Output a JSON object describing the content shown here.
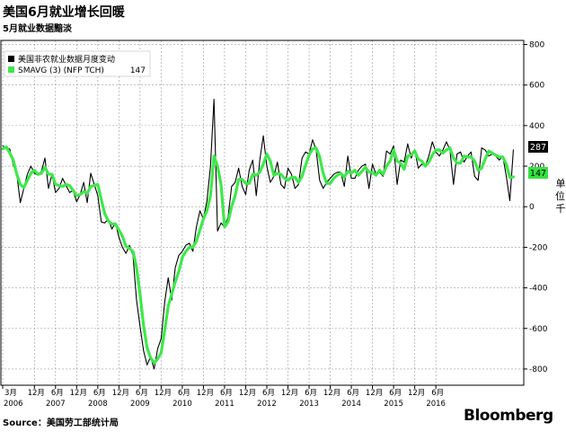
{
  "header": {
    "title": "美国6月就业增长回暖",
    "subtitle": "5月就业数据黯淡"
  },
  "footer": {
    "source": "Source：美国劳工部统计局",
    "brand": "Bloomberg"
  },
  "axis_unit": "单位：千",
  "colors": {
    "monthly_line": "#000000",
    "smavg_line": "#3ee84a",
    "last_value_black_bg": "#000000",
    "last_value_green_bg": "#33e240"
  },
  "chart_data": {
    "type": "line",
    "x_start": "2006-03",
    "x_labels_top": [
      "3月",
      "12月",
      "6月",
      "12月",
      "6月",
      "12月",
      "6月",
      "12月",
      "6月",
      "12月",
      "6月",
      "12月",
      "6月",
      "12月",
      "6月",
      "12月",
      "6月",
      "12月",
      "6月",
      "12月",
      "6月"
    ],
    "x_labels_top_months": [
      "2006-03",
      "2006-12",
      "2007-06",
      "2007-12",
      "2008-06",
      "2008-12",
      "2009-06",
      "2009-12",
      "2010-06",
      "2010-12",
      "2011-06",
      "2011-12",
      "2012-06",
      "2012-12",
      "2013-06",
      "2013-12",
      "2014-06",
      "2014-12",
      "2015-06",
      "2015-12",
      "2016-06"
    ],
    "x_labels_bottom": [
      "2006",
      "2007",
      "2008",
      "2009",
      "2010",
      "2011",
      "2012",
      "2013",
      "2014",
      "2015",
      "2016"
    ],
    "x_labels_bottom_months": [
      "2006-06",
      "2007-06",
      "2008-06",
      "2009-06",
      "2010-06",
      "2011-06",
      "2012-06",
      "2013-06",
      "2014-06",
      "2015-06",
      "2016-06"
    ],
    "y_ticks": [
      -800,
      -600,
      -400,
      -200,
      0,
      200,
      400,
      600,
      800
    ],
    "ylim": [
      -880,
      820
    ],
    "legend_position": "top-left",
    "grid": true,
    "series": [
      {
        "name": "美国非农就业数据月度变动",
        "last_value": "287",
        "values": [
          300,
          290,
          285,
          205,
          160,
          20,
          90,
          160,
          200,
          165,
          155,
          175,
          240,
          90,
          160,
          70,
          90,
          140,
          105,
          70,
          80,
          25,
          60,
          120,
          20,
          165,
          110,
          55,
          -75,
          -80,
          -60,
          -110,
          -80,
          -150,
          -200,
          -230,
          -190,
          -240,
          -460,
          -590,
          -710,
          -780,
          -740,
          -800,
          -700,
          -650,
          -470,
          -350,
          -460,
          -300,
          -240,
          -220,
          -190,
          -180,
          -220,
          -100,
          -20,
          -60,
          30,
          200,
          530,
          -120,
          -80,
          -100,
          -50,
          100,
          120,
          190,
          100,
          60,
          180,
          230,
          55,
          230,
          350,
          200,
          120,
          150,
          220,
          110,
          90,
          190,
          160,
          90,
          110,
          240,
          270,
          260,
          330,
          280,
          130,
          90,
          120,
          140,
          160,
          170,
          170,
          100,
          250,
          140,
          140,
          180,
          200,
          210,
          90,
          210,
          160,
          170,
          150,
          275,
          260,
          300,
          110,
          230,
          220,
          310,
          240,
          280,
          190,
          210,
          200,
          250,
          320,
          270,
          250,
          280,
          320,
          280,
          110,
          260,
          270,
          220,
          250,
          270,
          150,
          130,
          290,
          280,
          250,
          260,
          250,
          230,
          250,
          150,
          30,
          280
        ]
      },
      {
        "name": "SMAVG (3) (NFP TCH)",
        "last_value": "147",
        "values": [
          285,
          295,
          265,
          230,
          160,
          110,
          95,
          130,
          165,
          180,
          160,
          165,
          195,
          160,
          160,
          110,
          105,
          100,
          110,
          105,
          80,
          55,
          60,
          75,
          65,
          100,
          105,
          110,
          35,
          -35,
          -70,
          -85,
          -85,
          -115,
          -145,
          -195,
          -205,
          -220,
          -300,
          -430,
          -585,
          -695,
          -745,
          -770,
          -750,
          -720,
          -610,
          -490,
          -430,
          -370,
          -320,
          -250,
          -220,
          -200,
          -200,
          -170,
          -115,
          -60,
          -20,
          55,
          250,
          200,
          110,
          -100,
          -75,
          0,
          55,
          135,
          135,
          115,
          115,
          160,
          155,
          170,
          210,
          260,
          225,
          155,
          165,
          160,
          140,
          130,
          145,
          145,
          120,
          150,
          205,
          255,
          285,
          290,
          245,
          165,
          115,
          115,
          140,
          155,
          165,
          145,
          175,
          165,
          180,
          155,
          175,
          195,
          170,
          170,
          155,
          180,
          160,
          200,
          225,
          280,
          225,
          215,
          185,
          250,
          255,
          275,
          235,
          225,
          200,
          220,
          255,
          280,
          280,
          265,
          280,
          290,
          240,
          215,
          215,
          250,
          245,
          245,
          225,
          180,
          190,
          235,
          275,
          265,
          255,
          245,
          245,
          210,
          145,
          147
        ]
      }
    ]
  }
}
